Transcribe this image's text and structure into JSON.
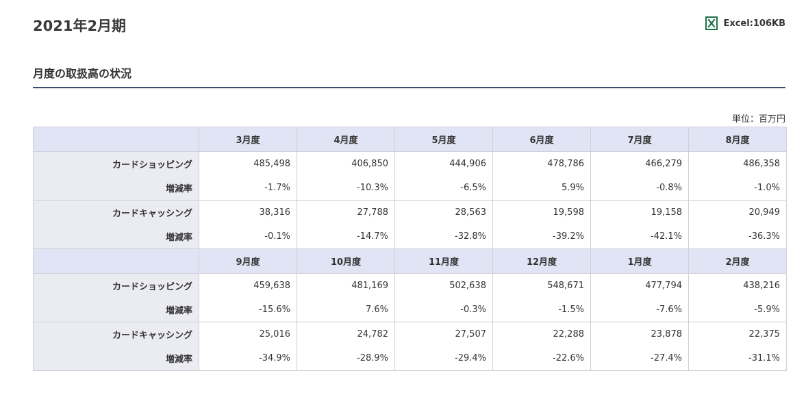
{
  "page_title": "2021年2月期",
  "excel_link": {
    "label": "Excel:106KB",
    "icon": "excel-file-icon",
    "color": "#1e7145"
  },
  "section_title": "月度の取扱高の状況",
  "unit_note": "単位：百万円",
  "tables": [
    {
      "months": [
        "3月度",
        "4月度",
        "5月度",
        "6月度",
        "7月度",
        "8月度"
      ],
      "rows": [
        {
          "label": "カードショッピング",
          "values": [
            "485,498",
            "406,850",
            "444,906",
            "478,786",
            "466,279",
            "486,358"
          ],
          "rate_label": "増減率",
          "rates": [
            "-1.7%",
            "-10.3%",
            "-6.5%",
            "5.9%",
            "-0.8%",
            "-1.0%"
          ]
        },
        {
          "label": "カードキャッシング",
          "values": [
            "38,316",
            "27,788",
            "28,563",
            "19,598",
            "19,158",
            "20,949"
          ],
          "rate_label": "増減率",
          "rates": [
            "-0.1%",
            "-14.7%",
            "-32.8%",
            "-39.2%",
            "-42.1%",
            "-36.3%"
          ]
        }
      ]
    },
    {
      "months": [
        "9月度",
        "10月度",
        "11月度",
        "12月度",
        "1月度",
        "2月度"
      ],
      "rows": [
        {
          "label": "カードショッピング",
          "values": [
            "459,638",
            "481,169",
            "502,638",
            "548,671",
            "477,794",
            "438,216"
          ],
          "rate_label": "増減率",
          "rates": [
            "-15.6%",
            "7.6%",
            "-0.3%",
            "-1.5%",
            "-7.6%",
            "-5.9%"
          ]
        },
        {
          "label": "カードキャッシング",
          "values": [
            "25,016",
            "24,782",
            "27,507",
            "22,288",
            "23,878",
            "22,375"
          ],
          "rate_label": "増減率",
          "rates": [
            "-34.9%",
            "-28.9%",
            "-29.4%",
            "-22.6%",
            "-27.4%",
            "-31.1%"
          ]
        }
      ]
    }
  ],
  "colors": {
    "header_bg": "#e1e4f5",
    "label_bg": "#ebebf2",
    "rule": "#3e4a6b"
  }
}
